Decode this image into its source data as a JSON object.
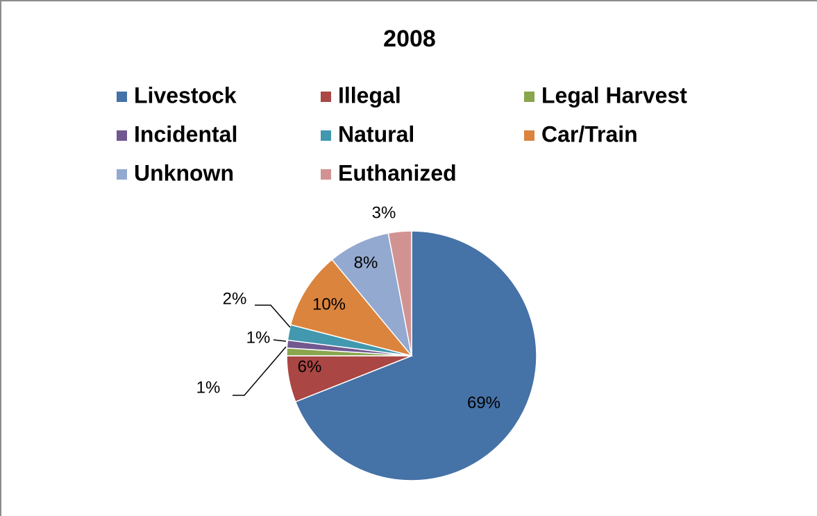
{
  "chart_data": {
    "type": "pie",
    "title": "2008",
    "categories": [
      "Livestock",
      "Illegal",
      "Legal Harvest",
      "Incidental",
      "Natural",
      "Car/Train",
      "Unknown",
      "Euthanized"
    ],
    "values": [
      69,
      6,
      1,
      1,
      2,
      10,
      8,
      3
    ],
    "value_labels": [
      "69%",
      "6%",
      "1%",
      "1%",
      "2%",
      "10%",
      "8%",
      "3%"
    ],
    "colors": [
      "#4572a7",
      "#aa4643",
      "#89a54e",
      "#71588f",
      "#4198af",
      "#db843d",
      "#93a9cf",
      "#d19392"
    ],
    "legend": "top"
  }
}
